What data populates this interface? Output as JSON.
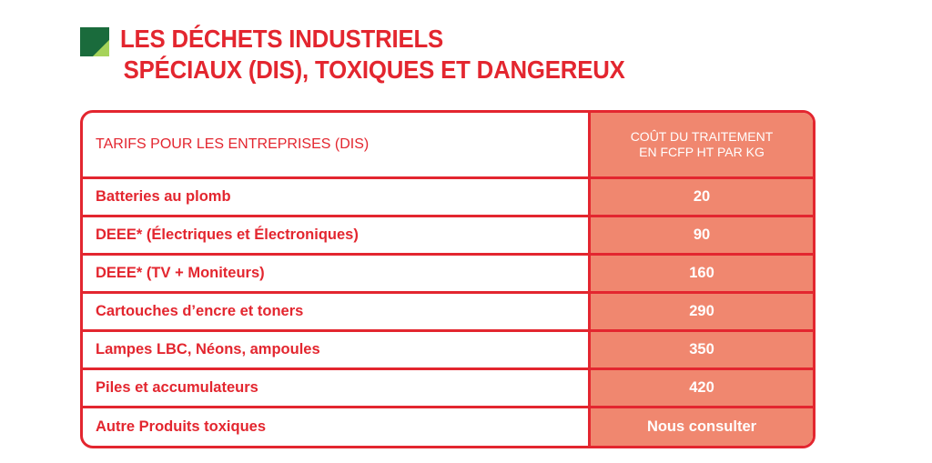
{
  "title": {
    "line1": "LES DÉCHETS INDUSTRIELS",
    "line2": "SPÉCIAUX (DIS), TOXIQUES ET DANGEREUX"
  },
  "colors": {
    "accent": "#e3262f",
    "value_column": "#f0876f",
    "logo_dark": "#1a6b3c",
    "logo_light": "#7ec242"
  },
  "icon": "green-square-logo-icon",
  "table": {
    "header_label": "TARIFS POUR LES ENTREPRISES (DIS)",
    "header_value_line1": "COÛT DU TRAITEMENT",
    "header_value_line2": "EN FCFP HT PAR KG",
    "rows": [
      {
        "label": "Batteries au plomb",
        "value": "20"
      },
      {
        "label": "DEEE* (Électriques et Électroniques)",
        "value": "90"
      },
      {
        "label": "DEEE* (TV + Moniteurs)",
        "value": "160"
      },
      {
        "label": "Cartouches d’encre et toners",
        "value": "290"
      },
      {
        "label": "Lampes LBC, Néons, ampoules",
        "value": "350"
      },
      {
        "label": "Piles et accumulateurs",
        "value": "420"
      },
      {
        "label": "Autre Produits toxiques",
        "value": "Nous consulter"
      }
    ]
  }
}
